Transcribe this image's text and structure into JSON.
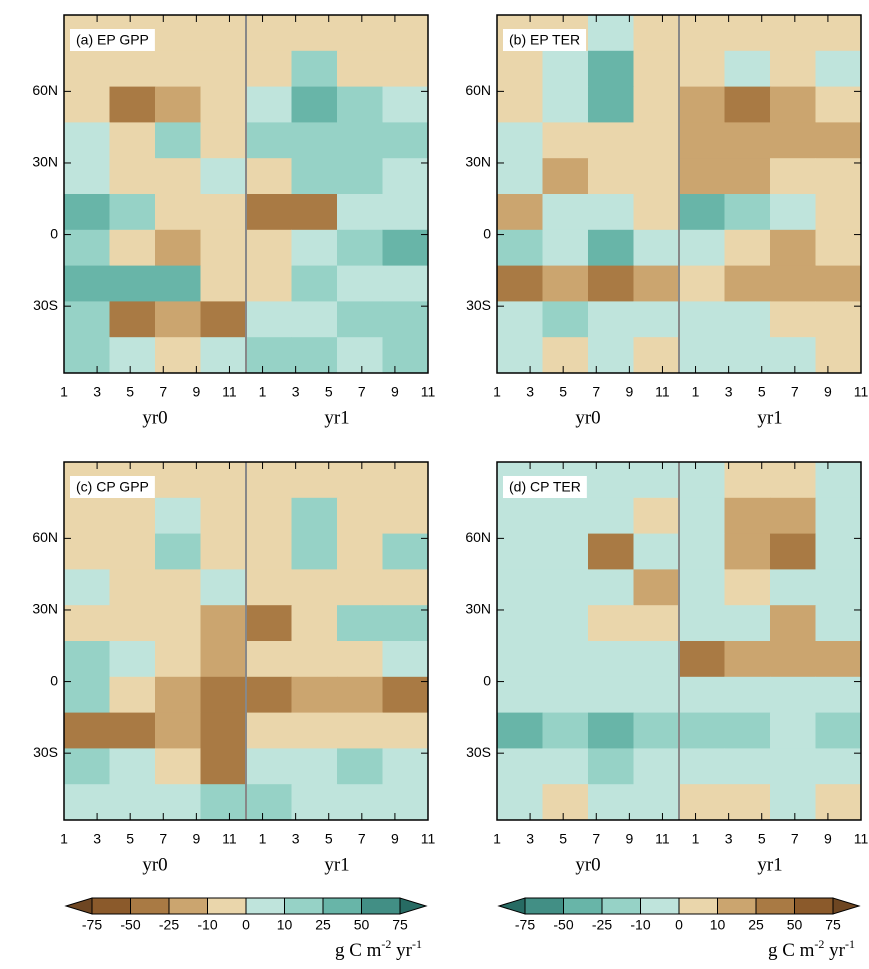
{
  "chart_data": [
    {
      "type": "heatmap",
      "title": "(a) EP GPP",
      "xlim": [
        1,
        23
      ],
      "ylim": [
        -58,
        92
      ],
      "xticks": [
        1,
        3,
        5,
        7,
        9,
        11,
        {
          "value": 13,
          "label": "1"
        },
        {
          "value": 15,
          "label": "3"
        },
        {
          "value": 17,
          "label": "5"
        },
        {
          "value": 19,
          "label": "7"
        },
        {
          "value": 21,
          "label": "9"
        },
        {
          "value": 23,
          "label": "11"
        }
      ],
      "yticks": [
        {
          "value": 60,
          "label": "60N"
        },
        {
          "value": 30,
          "label": "30N"
        },
        0,
        {
          "value": -30,
          "label": "30S"
        }
      ],
      "x_group_labels": [
        "yr0",
        "yr1"
      ],
      "separator_x": 12,
      "colorbar": 0,
      "field": [
        [
          -5,
          -5,
          -5,
          -5,
          -5,
          -5,
          -5,
          -5
        ],
        [
          -5,
          -5,
          -5,
          -5,
          -5,
          10,
          -5,
          -5
        ],
        [
          -5,
          -30,
          -15,
          -5,
          5,
          30,
          10,
          5
        ],
        [
          5,
          -5,
          10,
          -5,
          15,
          20,
          15,
          10
        ],
        [
          5,
          -5,
          -5,
          5,
          -5,
          10,
          10,
          5
        ],
        [
          30,
          10,
          -5,
          -5,
          -40,
          -30,
          5,
          5
        ],
        [
          10,
          -10,
          -15,
          -5,
          -5,
          5,
          10,
          30
        ],
        [
          40,
          30,
          30,
          -5,
          -5,
          10,
          5,
          5
        ],
        [
          10,
          -30,
          -15,
          -40,
          5,
          5,
          10,
          10
        ],
        [
          10,
          5,
          -5,
          5,
          20,
          10,
          5,
          10
        ]
      ]
    },
    {
      "type": "heatmap",
      "title": "(b) EP TER",
      "xlim": [
        1,
        23
      ],
      "ylim": [
        -58,
        92
      ],
      "xticks": [
        1,
        3,
        5,
        7,
        9,
        11,
        {
          "value": 13,
          "label": "1"
        },
        {
          "value": 15,
          "label": "3"
        },
        {
          "value": 17,
          "label": "5"
        },
        {
          "value": 19,
          "label": "7"
        },
        {
          "value": 21,
          "label": "9"
        },
        {
          "value": 23,
          "label": "11"
        }
      ],
      "yticks": [
        {
          "value": 60,
          "label": "60N"
        },
        {
          "value": 30,
          "label": "30N"
        },
        0,
        {
          "value": -30,
          "label": "30S"
        }
      ],
      "x_group_labels": [
        "yr0",
        "yr1"
      ],
      "separator_x": 12,
      "colorbar": 1,
      "field": [
        [
          5,
          5,
          -5,
          5,
          5,
          5,
          5,
          5
        ],
        [
          5,
          -10,
          -30,
          5,
          5,
          -5,
          5,
          -5
        ],
        [
          5,
          -10,
          -30,
          5,
          10,
          30,
          15,
          5
        ],
        [
          -5,
          5,
          5,
          5,
          10,
          15,
          10,
          20
        ],
        [
          -5,
          15,
          5,
          5,
          15,
          10,
          5,
          5
        ],
        [
          10,
          -5,
          -5,
          5,
          -40,
          -20,
          -5,
          5
        ],
        [
          -20,
          -10,
          -30,
          -10,
          -5,
          5,
          15,
          5
        ],
        [
          30,
          20,
          30,
          10,
          5,
          10,
          10,
          20
        ],
        [
          -10,
          -15,
          -5,
          -5,
          -10,
          -5,
          5,
          5
        ],
        [
          -10,
          5,
          -10,
          5,
          -5,
          -5,
          -5,
          5
        ]
      ]
    },
    {
      "type": "heatmap",
      "title": "(c) CP GPP",
      "xlim": [
        1,
        23
      ],
      "ylim": [
        -58,
        92
      ],
      "xticks": [
        1,
        3,
        5,
        7,
        9,
        11,
        {
          "value": 13,
          "label": "1"
        },
        {
          "value": 15,
          "label": "3"
        },
        {
          "value": 17,
          "label": "5"
        },
        {
          "value": 19,
          "label": "7"
        },
        {
          "value": 21,
          "label": "9"
        },
        {
          "value": 23,
          "label": "11"
        }
      ],
      "yticks": [
        {
          "value": 60,
          "label": "60N"
        },
        {
          "value": 30,
          "label": "30N"
        },
        0,
        {
          "value": -30,
          "label": "30S"
        }
      ],
      "x_group_labels": [
        "yr0",
        "yr1"
      ],
      "separator_x": 12,
      "colorbar": 0,
      "field": [
        [
          -5,
          -5,
          -5,
          -5,
          -5,
          -5,
          -5,
          -5
        ],
        [
          -5,
          -10,
          5,
          -5,
          -5,
          15,
          -5,
          -5
        ],
        [
          -5,
          -5,
          10,
          -5,
          -5,
          20,
          -5,
          10
        ],
        [
          5,
          -5,
          -5,
          5,
          -5,
          -5,
          -5,
          -5
        ],
        [
          -5,
          -10,
          -10,
          -15,
          -30,
          -10,
          10,
          15
        ],
        [
          10,
          5,
          -5,
          -15,
          -10,
          -5,
          -5,
          5
        ],
        [
          10,
          -5,
          -15,
          -40,
          -30,
          -20,
          -15,
          -30
        ],
        [
          -40,
          -40,
          -20,
          -40,
          -10,
          -5,
          -5,
          -10
        ],
        [
          10,
          5,
          -10,
          -30,
          5,
          5,
          10,
          5
        ],
        [
          5,
          5,
          5,
          10,
          10,
          5,
          5,
          5
        ]
      ]
    },
    {
      "type": "heatmap",
      "title": "(d) CP TER",
      "xlim": [
        1,
        23
      ],
      "ylim": [
        -58,
        92
      ],
      "xticks": [
        1,
        3,
        5,
        7,
        9,
        11,
        {
          "value": 13,
          "label": "1"
        },
        {
          "value": 15,
          "label": "3"
        },
        {
          "value": 17,
          "label": "5"
        },
        {
          "value": 19,
          "label": "7"
        },
        {
          "value": 21,
          "label": "9"
        },
        {
          "value": 23,
          "label": "11"
        }
      ],
      "yticks": [
        {
          "value": 60,
          "label": "60N"
        },
        {
          "value": 30,
          "label": "30N"
        },
        0,
        {
          "value": -30,
          "label": "30S"
        }
      ],
      "x_group_labels": [
        "yr0",
        "yr1"
      ],
      "separator_x": 12,
      "colorbar": 1,
      "field": [
        [
          -5,
          -5,
          -5,
          -5,
          -5,
          5,
          5,
          -5
        ],
        [
          -5,
          -10,
          -5,
          5,
          -5,
          15,
          10,
          -5
        ],
        [
          -5,
          -5,
          30,
          -5,
          -5,
          10,
          30,
          -5
        ],
        [
          -5,
          -5,
          -5,
          10,
          -5,
          5,
          -5,
          -10
        ],
        [
          -5,
          -5,
          5,
          5,
          -5,
          -5,
          15,
          -5
        ],
        [
          -5,
          -5,
          -5,
          -5,
          30,
          20,
          15,
          10
        ],
        [
          -10,
          -5,
          -10,
          -5,
          -5,
          -5,
          -10,
          -5
        ],
        [
          -30,
          -20,
          -40,
          -20,
          -15,
          -20,
          -10,
          -20
        ],
        [
          -10,
          -10,
          -15,
          -10,
          -10,
          -10,
          -10,
          -10
        ],
        [
          -5,
          5,
          -10,
          -5,
          5,
          5,
          -5,
          5
        ]
      ]
    }
  ],
  "colorbars": [
    {
      "levels": [
        -75,
        -50,
        -25,
        -10,
        0,
        10,
        25,
        50,
        75
      ],
      "colors": [
        "#6e4622",
        "#8b5a2b",
        "#a97a44",
        "#cba56f",
        "#ead6ab",
        "#bfe4dc",
        "#96d2c6",
        "#68b5a8",
        "#428f85",
        "#276b63"
      ],
      "unit": [
        "g C m",
        "-2",
        " yr",
        "-1"
      ]
    },
    {
      "levels": [
        -75,
        -50,
        -25,
        -10,
        0,
        10,
        25,
        50,
        75
      ],
      "colors": [
        "#276b63",
        "#428f85",
        "#68b5a8",
        "#96d2c6",
        "#bfe4dc",
        "#ead6ab",
        "#cba56f",
        "#a97a44",
        "#8b5a2b",
        "#6e4622"
      ],
      "unit": [
        "g C m",
        "-2",
        " yr",
        "-1"
      ]
    }
  ]
}
